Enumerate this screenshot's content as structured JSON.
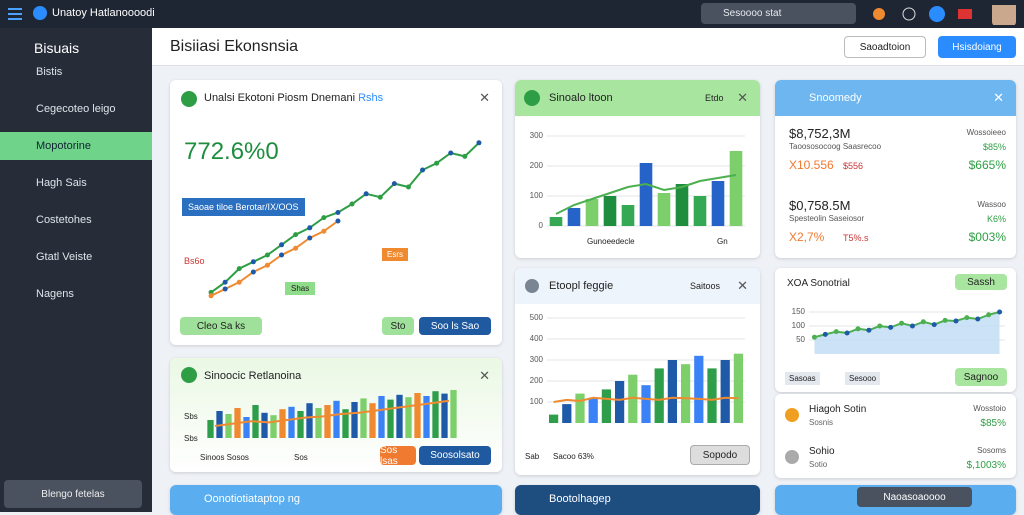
{
  "topbar": {
    "app_name": "Unatoy Hatlanoooodi",
    "search": "Sesoooo stat"
  },
  "sidebar": {
    "title": "Bisuais",
    "items": [
      "Bistis",
      "Cegecoteo leigo",
      "Mopotorine",
      "Hagh Sais",
      "Costetohes",
      "Gtatl Veiste",
      "Nagens"
    ],
    "active": 2,
    "footer_button": "Blengo fetelas"
  },
  "header": {
    "title": "Bisiiasi Ekonsnsia",
    "buttons": [
      "Saoadtoion",
      "Hsisdoiang"
    ]
  },
  "cards": [
    {
      "title": "Unalsi Ekotoni Piosm Dnemani",
      "tag": "Rshs",
      "value": "772.6%0",
      "badge": "Saoae tiloe Berotar/IX/OOS",
      "label": "Bs6o",
      "callout": "Esrs",
      "chip": "Shas",
      "footer_left": "Cleo Sa ks",
      "footer_buttons": [
        "Sto",
        "Soo ls Sao"
      ],
      "chart": {
        "ylim": [
          0,
          100
        ],
        "line": [
          8,
          14,
          22,
          26,
          30,
          36,
          42,
          46,
          52,
          55,
          60,
          66,
          64,
          72,
          70,
          80,
          84,
          90,
          88,
          96
        ],
        "line_color": "#2e9e44",
        "line2": [
          6,
          10,
          14,
          20,
          24,
          30,
          34,
          40,
          44,
          50
        ],
        "line2_color": "#f08a30"
      }
    },
    {
      "title": "Sinoocic Retlanoina",
      "tick_labels": [
        "Sbs",
        "Sbs"
      ],
      "footer_left": "Sinoos Sosos",
      "footer_mid": "Sos",
      "footer_buttons": [
        "Sos lsas",
        "Soosolsato"
      ],
      "chart": {
        "ylim": [
          0,
          100
        ],
        "bars": [
          30,
          45,
          40,
          50,
          35,
          55,
          42,
          38,
          48,
          52,
          45,
          58,
          50,
          55,
          62,
          48,
          60,
          66,
          58,
          70,
          64,
          72,
          68,
          75,
          70,
          78,
          74,
          80
        ],
        "bar_colors": [
          "#2f9e4a",
          "#1e5aa8",
          "#7ccf6a",
          "#f08a30",
          "#3b82f6"
        ],
        "line": [
          20,
          24,
          28,
          26,
          30,
          34,
          36,
          40,
          42,
          46,
          50,
          54,
          58,
          62
        ],
        "line_color": "#f08a30"
      }
    },
    {
      "title": "Sinoalo ltoon",
      "tag": "Etdo",
      "footer": [
        "Gunoeedecle",
        "Gn"
      ],
      "chart": {
        "ylim": [
          0,
          300
        ],
        "yticks": [
          0,
          100,
          200,
          300
        ],
        "bars": [
          30,
          60,
          90,
          100,
          70,
          210,
          110,
          140,
          100,
          150,
          250
        ],
        "bar_colors": [
          "#34a853",
          "#2563c8",
          "#7ccf6a",
          "#1e8e3e"
        ],
        "line": [
          40,
          70,
          90,
          110,
          130,
          140,
          120,
          130,
          150,
          160,
          170
        ],
        "line_color": "#4caf50"
      }
    },
    {
      "title": "Etoopl feggie",
      "tag": "Saitoos",
      "footer": [
        "Sab",
        "Sacoo 63%"
      ],
      "button": "Sopodo",
      "chart": {
        "ylim": [
          0,
          500
        ],
        "yticks": [
          100,
          200,
          300,
          400,
          500
        ],
        "bars": [
          40,
          90,
          140,
          120,
          160,
          200,
          230,
          180,
          260,
          300,
          280,
          320,
          260,
          300,
          330
        ],
        "bar_colors": [
          "#2f9e4a",
          "#1e5aa8",
          "#7ccf6a",
          "#3b82f6"
        ],
        "line": [
          100,
          110,
          105,
          120,
          115,
          110,
          120,
          115,
          110,
          120,
          118,
          115,
          110,
          120,
          118
        ],
        "line_color": "#f08a30"
      }
    },
    {
      "title": "Snoomedy",
      "rows": [
        {
          "value": "$8,752,3M",
          "label": "Taoososocoog Saasrecoo",
          "right_label": "Wossoieeo",
          "right_value": "$85%",
          "sub_left": "X10.556",
          "sub_mid": "$556",
          "sub_right": "$665%"
        },
        {
          "value": "$0,758.5M",
          "label": "Spesteolin Saseiosor",
          "right_label": "Wassoo",
          "right_value": "K6%",
          "sub_left": "X2,7%",
          "sub_mid": "T5%.s",
          "sub_right": "$003%"
        }
      ]
    },
    {
      "title": "XOA Sonotrial",
      "chip": "Sassh",
      "footer": [
        "Sasoas",
        "Sesooo"
      ],
      "button": "Sagnoo",
      "chart": {
        "ylim": [
          0,
          200
        ],
        "yticks": [
          50,
          100,
          150
        ],
        "line": [
          60,
          70,
          80,
          75,
          90,
          85,
          100,
          95,
          110,
          100,
          115,
          105,
          120,
          118,
          130,
          125,
          140,
          150
        ],
        "line_color": "#4caf50",
        "area_color": "#bfdcf5"
      }
    },
    {
      "items": [
        {
          "name": "Hiagoh Sotin",
          "sub": "Sosnis",
          "right_label": "Wosstoio",
          "value": "$85%"
        },
        {
          "name": "Sohio",
          "sub": "Sotio",
          "right_label": "Sosoms",
          "value": "$,1003%"
        }
      ]
    }
  ],
  "bottom": {
    "left": "Oonotiotiataptop ng",
    "mid": "Bootolhagep",
    "dropdown": "Naoasoaoooo"
  }
}
